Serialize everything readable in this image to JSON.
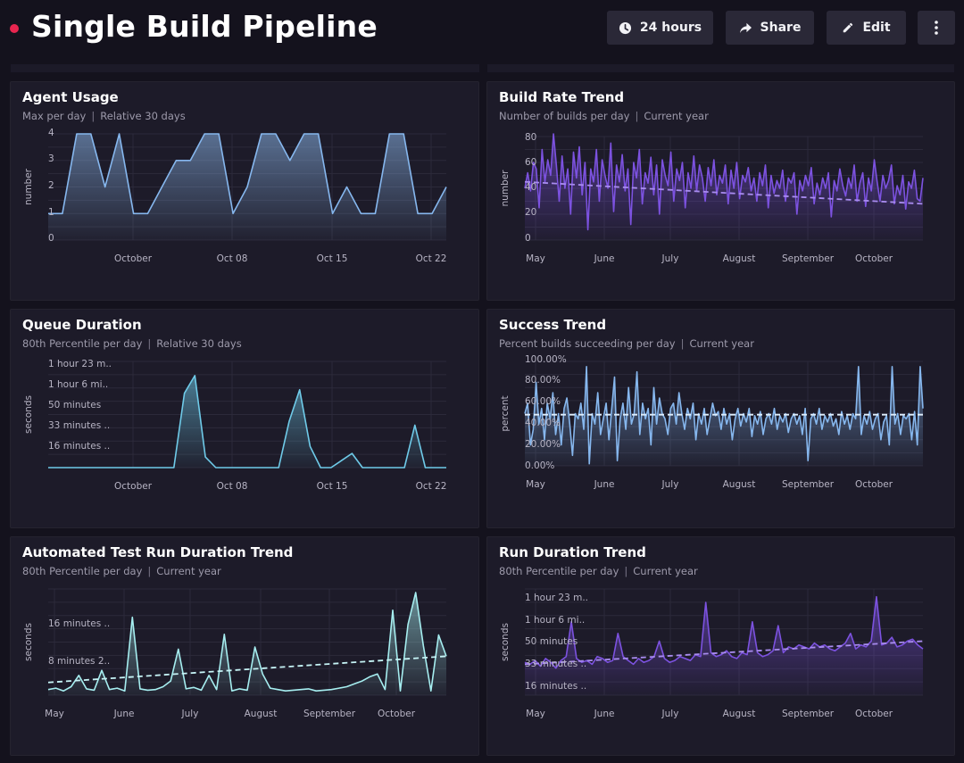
{
  "header": {
    "title": "Single Build Pipeline",
    "time_range_label": "24 hours",
    "share_label": "Share",
    "edit_label": "Edit"
  },
  "colors": {
    "accent_red": "#e8254f",
    "blue": "#86b7ee",
    "purple": "#7c52e0",
    "cyan": "#6fcbe9",
    "teal": "#a6eef0"
  },
  "panels": [
    {
      "title": "Agent Usage",
      "subtitle_a": "Max per day",
      "subtitle_b": "Relative 30 days",
      "chart_data": {
        "type": "area",
        "ylabel": "number",
        "y_ticks": [
          "4",
          "3",
          "2",
          "1",
          "0"
        ],
        "x_ticks": [
          "October",
          "Oct 08",
          "Oct 15",
          "Oct 22"
        ],
        "ylim": [
          0,
          4
        ],
        "values": [
          1,
          1,
          4,
          4,
          2,
          4,
          1,
          1,
          2,
          3,
          3,
          4,
          4,
          1,
          2,
          4,
          4,
          3,
          4,
          4,
          1,
          2,
          1,
          1,
          4,
          4,
          1,
          1,
          2
        ]
      }
    },
    {
      "title": "Build Rate Trend",
      "subtitle_a": "Number of builds per day",
      "subtitle_b": "Current year",
      "chart_data": {
        "type": "area",
        "ylabel": "number",
        "y_ticks": [
          "80",
          "60",
          "40",
          "20",
          "0"
        ],
        "x_ticks": [
          "May",
          "June",
          "July",
          "August",
          "September",
          "October"
        ],
        "ylim": [
          0,
          80
        ],
        "trend": [
          45,
          28
        ],
        "values": [
          40,
          52,
          38,
          60,
          55,
          25,
          70,
          45,
          62,
          50,
          82,
          58,
          30,
          65,
          40,
          55,
          20,
          68,
          48,
          72,
          35,
          60,
          8,
          55,
          45,
          70,
          30,
          62,
          50,
          40,
          75,
          22,
          58,
          45,
          66,
          38,
          55,
          12,
          60,
          48,
          70,
          28,
          52,
          44,
          64,
          35,
          58,
          20,
          62,
          50,
          42,
          68,
          30,
          55,
          46,
          60,
          25,
          52,
          40,
          65,
          38,
          58,
          48,
          30,
          56,
          42,
          62,
          35,
          50,
          44,
          58,
          28,
          54,
          40,
          60,
          32,
          50,
          45,
          56,
          38,
          48,
          30,
          52,
          42,
          58,
          25,
          50,
          36,
          46,
          40,
          54,
          30,
          48,
          44,
          52,
          20,
          46,
          38,
          50,
          42,
          56,
          28,
          44,
          35,
          48,
          40,
          52,
          18,
          46,
          38,
          55,
          42,
          34,
          48,
          40,
          58,
          30,
          44,
          52,
          26,
          48,
          38,
          62,
          45,
          30,
          50,
          40,
          46,
          58,
          28,
          42,
          35,
          50,
          24,
          45,
          40,
          54,
          32,
          30,
          48
        ]
      }
    },
    {
      "title": "Queue Duration",
      "subtitle_a": "80th Percentile per day",
      "subtitle_b": "Relative 30 days",
      "chart_data": {
        "type": "area",
        "ylabel": "seconds",
        "y_ticks": [
          "1 hour 23 m..",
          "1 hour 6 mi..",
          "50 minutes",
          "33 minutes ..",
          "16 minutes .."
        ],
        "x_ticks": [
          "October",
          "Oct 08",
          "Oct 15",
          "Oct 22"
        ],
        "ylim": [
          0,
          6000
        ],
        "values": [
          0,
          0,
          0,
          0,
          0,
          0,
          0,
          0,
          0,
          0,
          0,
          0,
          0,
          4200,
          5200,
          600,
          0,
          0,
          0,
          0,
          0,
          0,
          0,
          2600,
          4400,
          1200,
          0,
          0,
          400,
          800,
          0,
          0,
          0,
          0,
          0,
          2400,
          0,
          0,
          0
        ]
      }
    },
    {
      "title": "Success Trend",
      "subtitle_a": "Percent builds succeeding per day",
      "subtitle_b": "Current year",
      "chart_data": {
        "type": "area",
        "ylabel": "percent",
        "y_ticks": [
          "100.00%",
          "80.00%",
          "60.00%",
          "40.00%",
          "20.00%",
          "0.00%"
        ],
        "x_ticks": [
          "May",
          "June",
          "July",
          "August",
          "September",
          "October"
        ],
        "ylim": [
          0,
          100
        ],
        "trend": [
          49,
          49
        ],
        "values": [
          50,
          60,
          20,
          35,
          80,
          40,
          55,
          25,
          60,
          45,
          70,
          30,
          50,
          20,
          55,
          65,
          40,
          10,
          50,
          45,
          60,
          35,
          95,
          2,
          50,
          40,
          70,
          30,
          45,
          60,
          25,
          55,
          85,
          5,
          45,
          60,
          35,
          75,
          40,
          50,
          90,
          30,
          60,
          45,
          55,
          20,
          75,
          40,
          65,
          50,
          45,
          30,
          55,
          60,
          40,
          70,
          50,
          35,
          55,
          45,
          60,
          25,
          50,
          40,
          55,
          30,
          45,
          60,
          48,
          52,
          35,
          55,
          40,
          50,
          25,
          45,
          55,
          38,
          50,
          42,
          55,
          28,
          48,
          40,
          52,
          30,
          45,
          50,
          40,
          55,
          35,
          48,
          42,
          50,
          32,
          45,
          50,
          40,
          48,
          30,
          55,
          5,
          45,
          50,
          40,
          55,
          35,
          48,
          42,
          50,
          38,
          45,
          30,
          52,
          40,
          48,
          35,
          50,
          45,
          95,
          30,
          48,
          40,
          52,
          35,
          45,
          50,
          25,
          42,
          48,
          20,
          95,
          40,
          50,
          30,
          48,
          45,
          50,
          25,
          52,
          20,
          95,
          55
        ]
      }
    },
    {
      "title": "Automated Test Run Duration Trend",
      "subtitle_a": "80th Percentile per day",
      "subtitle_b": "Current year",
      "chart_data": {
        "type": "area",
        "ylabel": "seconds",
        "y_ticks": [
          "16 minutes ..",
          "8 minutes 2.."
        ],
        "x_ticks": [
          "May",
          "June",
          "July",
          "August",
          "September",
          "October"
        ],
        "ylim": [
          0,
          1500
        ],
        "trend": [
          180,
          550
        ],
        "values": [
          80,
          100,
          60,
          120,
          280,
          90,
          70,
          350,
          80,
          100,
          60,
          1100,
          90,
          70,
          80,
          120,
          200,
          650,
          90,
          110,
          70,
          280,
          80,
          860,
          60,
          90,
          70,
          680,
          300,
          100,
          80,
          60,
          70,
          80,
          90,
          60,
          70,
          80,
          100,
          120,
          160,
          200,
          260,
          300,
          80,
          1200,
          60,
          1000,
          1450,
          700,
          60,
          850,
          550
        ]
      }
    },
    {
      "title": "Run Duration Trend",
      "subtitle_a": "80th Percentile per day",
      "subtitle_b": "Current year",
      "chart_data": {
        "type": "area",
        "ylabel": "seconds",
        "y_ticks": [
          "1 hour 23 m..",
          "1 hour 6 mi..",
          "50 minutes",
          "33 minutes ..",
          "16 minutes .."
        ],
        "x_ticks": [
          "May",
          "June",
          "July",
          "August",
          "September",
          "October"
        ],
        "ylim": [
          0,
          5500
        ],
        "trend": [
          1600,
          2800
        ],
        "values": [
          1700,
          1600,
          1800,
          1500,
          1900,
          1700,
          1400,
          1800,
          2000,
          3800,
          1900,
          1700,
          1800,
          1600,
          2000,
          1900,
          1700,
          1800,
          3200,
          2000,
          1800,
          1600,
          1900,
          1700,
          1800,
          2000,
          2800,
          1900,
          1700,
          1800,
          2000,
          1900,
          1800,
          2100,
          2000,
          4800,
          2200,
          2000,
          2100,
          2300,
          2000,
          1900,
          2200,
          2100,
          3800,
          2200,
          2000,
          2100,
          2300,
          3600,
          2200,
          2500,
          2400,
          2600,
          2500,
          2400,
          2700,
          2500,
          2600,
          2400,
          2300,
          2500,
          2700,
          3200,
          2400,
          2600,
          2500,
          2800,
          5100,
          2600,
          2700,
          3000,
          2500,
          2600,
          2800,
          2900,
          2600,
          2400
        ]
      }
    }
  ]
}
